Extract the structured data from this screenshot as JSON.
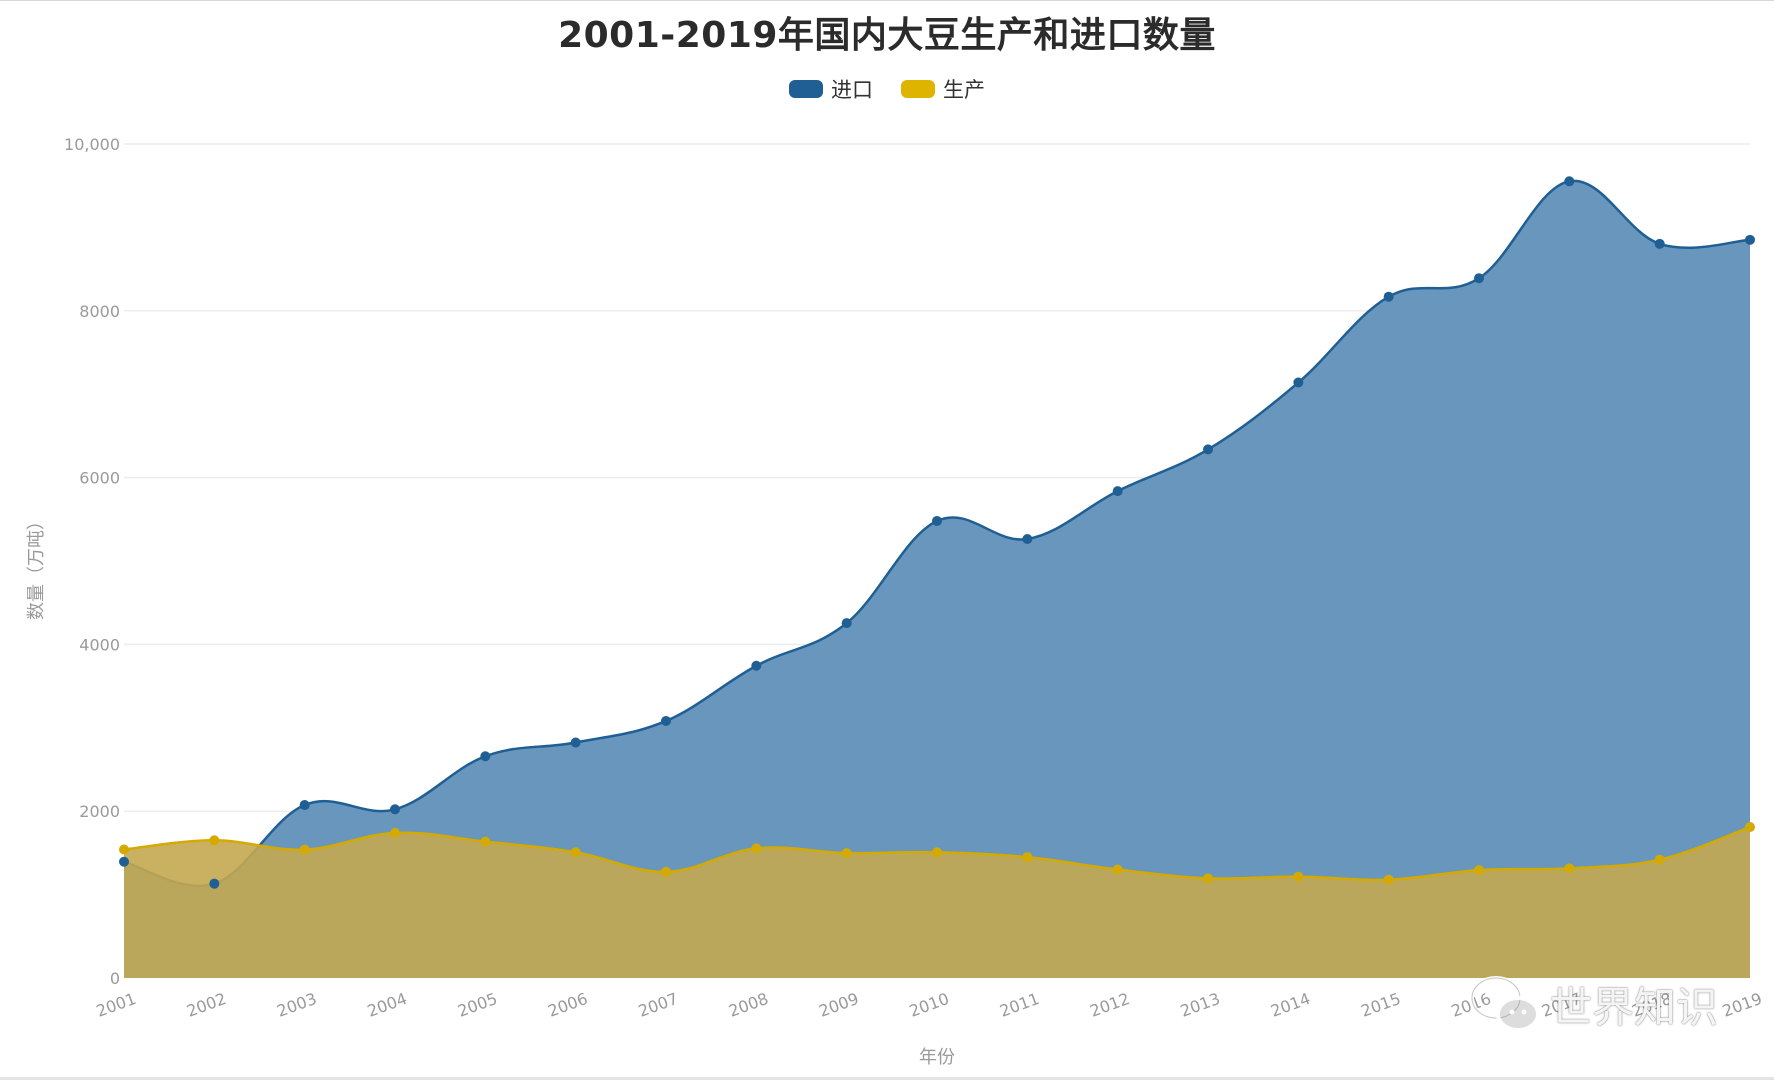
{
  "chart_data": {
    "type": "area",
    "title": "2001-2019年国内大豆生产和进口数量",
    "xlabel": "年份",
    "ylabel": "数量（万吨）",
    "ylim": [
      0,
      10000
    ],
    "yticks": [
      0,
      2000,
      4000,
      6000,
      8000,
      10000
    ],
    "ytick_labels": [
      "0",
      "2000",
      "4000",
      "6000",
      "8000",
      "10,000"
    ],
    "x": [
      "2001",
      "2002",
      "2003",
      "2004",
      "2005",
      "2006",
      "2007",
      "2008",
      "2009",
      "2010",
      "2011",
      "2012",
      "2013",
      "2014",
      "2015",
      "2016",
      "2017",
      "2018",
      "2019"
    ],
    "grid": true,
    "legend_position": "top-center",
    "series": [
      {
        "name": "进口",
        "color": "#1f5f94",
        "fill": "#6896bd",
        "values": [
          1394,
          1131,
          2074,
          2023,
          2659,
          2824,
          3082,
          3744,
          4255,
          5480,
          5264,
          5838,
          6338,
          7140,
          8169,
          8391,
          9553,
          8803,
          8851
        ]
      },
      {
        "name": "生产",
        "color": "#d4aa00",
        "fill": "#c4a851",
        "values": [
          1541,
          1651,
          1539,
          1740,
          1635,
          1508,
          1273,
          1554,
          1498,
          1508,
          1449,
          1301,
          1195,
          1215,
          1179,
          1294,
          1315,
          1419,
          1810
        ]
      }
    ]
  },
  "watermark": {
    "text": "世界知识",
    "icon": "wechat-icon"
  }
}
